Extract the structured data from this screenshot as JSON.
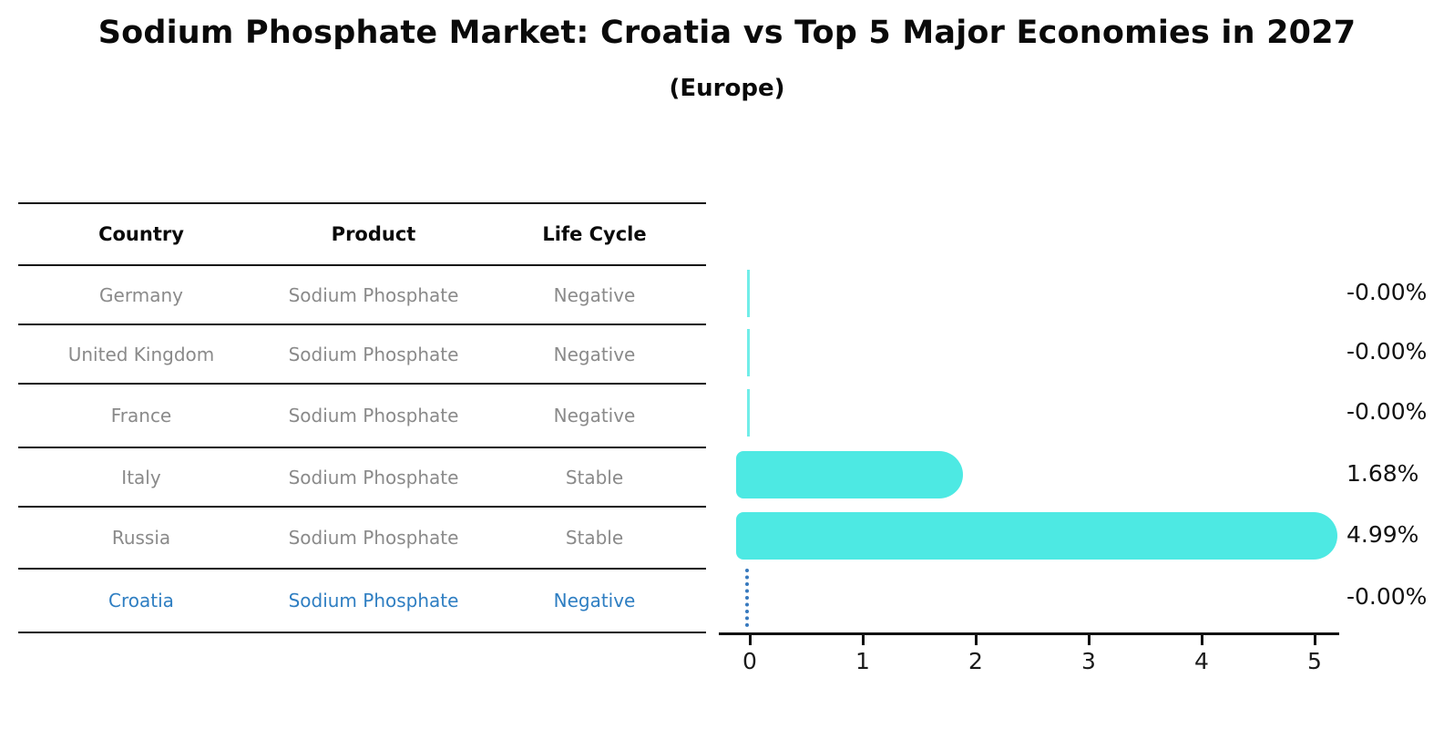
{
  "title": "Sodium Phosphate Market: Croatia vs Top 5 Major Economies in 2027",
  "subtitle": "(Europe)",
  "table": {
    "headers": [
      "Country",
      "Product",
      "Life Cycle"
    ],
    "rows": [
      {
        "country": "Germany",
        "product": "Sodium Phosphate",
        "life_cycle": "Negative"
      },
      {
        "country": "United Kingdom",
        "product": "Sodium Phosphate",
        "life_cycle": "Negative"
      },
      {
        "country": "France",
        "product": "Sodium Phosphate",
        "life_cycle": "Negative"
      },
      {
        "country": "Italy",
        "product": "Sodium Phosphate",
        "life_cycle": "Stable"
      },
      {
        "country": "Russia",
        "product": "Sodium Phosphate",
        "life_cycle": "Stable"
      },
      {
        "country": "Croatia",
        "product": "Sodium Phosphate",
        "life_cycle": "Negative"
      }
    ]
  },
  "chart_data": {
    "type": "bar",
    "orientation": "horizontal",
    "title": "Sodium Phosphate Market: Croatia vs Top 5 Major Economies in 2027",
    "subtitle": "(Europe)",
    "categories": [
      "Germany",
      "United Kingdom",
      "France",
      "Italy",
      "Russia",
      "Croatia"
    ],
    "values": [
      0,
      0,
      0,
      1.68,
      4.99,
      0
    ],
    "value_labels": [
      "-0.00%",
      "-0.00%",
      "-0.00%",
      "1.68%",
      "4.99%",
      "-0.00%"
    ],
    "x_ticks": [
      0,
      1,
      2,
      3,
      4,
      5
    ],
    "xlim": [
      0,
      5.45
    ],
    "xlabel": "",
    "ylabel": "",
    "grid": false,
    "legend": "none",
    "bar_color": "#4de9e3",
    "highlight_index": 5,
    "highlight_country": "Croatia",
    "highlight_text_color": "#2e7ec2",
    "highlight_marker_color": "#3779be",
    "highlight_marker_style": "dotted-line-at-zero"
  }
}
